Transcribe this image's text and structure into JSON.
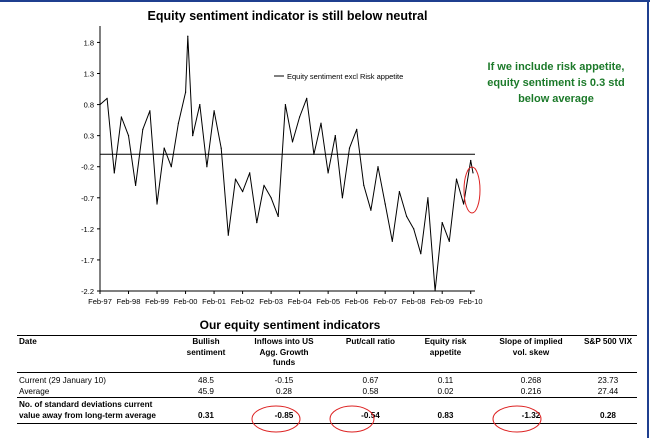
{
  "chart_data": {
    "type": "line",
    "title": "Equity sentiment indicator is still below neutral",
    "legend": {
      "label": "Equity sentiment excl Risk appetite",
      "placement": "top-center"
    },
    "series": [
      {
        "name": "Equity sentiment excl Risk appetite",
        "color": "#000000",
        "x": [
          1997.0,
          1997.25,
          1997.5,
          1997.75,
          1998.0,
          1998.25,
          1998.5,
          1998.75,
          1999.0,
          1999.25,
          1999.5,
          1999.75,
          2000.0,
          2000.08,
          2000.25,
          2000.5,
          2000.75,
          2001.0,
          2001.25,
          2001.5,
          2001.75,
          2002.0,
          2002.25,
          2002.5,
          2002.75,
          2003.0,
          2003.25,
          2003.5,
          2003.75,
          2004.0,
          2004.25,
          2004.5,
          2004.75,
          2005.0,
          2005.25,
          2005.5,
          2005.75,
          2006.0,
          2006.25,
          2006.5,
          2006.75,
          2007.0,
          2007.25,
          2007.5,
          2007.75,
          2008.0,
          2008.25,
          2008.5,
          2008.75,
          2009.0,
          2009.25,
          2009.5,
          2009.75,
          2010.0,
          2010.08
        ],
        "y": [
          0.8,
          0.9,
          -0.3,
          0.6,
          0.3,
          -0.5,
          0.4,
          0.7,
          -0.8,
          0.1,
          -0.2,
          0.5,
          1.0,
          1.9,
          0.3,
          0.8,
          -0.2,
          0.7,
          0.1,
          -1.3,
          -0.4,
          -0.6,
          -0.3,
          -1.1,
          -0.5,
          -0.7,
          -1.0,
          0.8,
          0.2,
          0.6,
          0.9,
          0.0,
          0.5,
          -0.3,
          0.3,
          -0.7,
          0.1,
          0.4,
          -0.5,
          -0.9,
          -0.2,
          -0.8,
          -1.4,
          -0.6,
          -1.0,
          -1.2,
          -1.6,
          -0.7,
          -2.2,
          -1.1,
          -1.4,
          -0.4,
          -0.8,
          -0.1,
          -0.3
        ]
      }
    ],
    "zero_line": 0,
    "ylim": [
      -2.2,
      2.0
    ],
    "yticks": [
      "1.8",
      "1.3",
      "0.8",
      "0.3",
      "-0.2",
      "-0.7",
      "-1.2",
      "-1.7",
      "-2.2"
    ],
    "yticks_values": [
      1.8,
      1.3,
      0.8,
      0.3,
      -0.2,
      -0.7,
      -1.2,
      -1.7,
      -2.2
    ],
    "xticks": [
      "Feb-97",
      "Feb-98",
      "Feb-99",
      "Feb-00",
      "Feb-01",
      "Feb-02",
      "Feb-03",
      "Feb-04",
      "Feb-05",
      "Feb-06",
      "Feb-07",
      "Feb-08",
      "Feb-09",
      "Feb-10"
    ],
    "xlim": [
      1997.0,
      2010.15
    ],
    "grid": false,
    "highlight": {
      "description_color": "#dd2222"
    }
  },
  "callout": {
    "lines": [
      "If we include risk appetite,",
      "equity sentiment is 0.3 std",
      "below average"
    ],
    "color": "#1c7a2a"
  },
  "table": {
    "title": "Our equity sentiment indicators",
    "columns": [
      "Date",
      "Bullish\nsentiment",
      "Inflows into US\nAgg. Growth\nfunds",
      "Put/call ratio",
      "Equity risk\nappetite",
      "Slope of implied\nvol. skew",
      "S&P 500 VIX"
    ],
    "rows": [
      {
        "label": "Current (29 January 10)",
        "values": [
          "48.5",
          "-0.15",
          "0.67",
          "0.11",
          "0.268",
          "23.73"
        ]
      },
      {
        "label": "Average",
        "values": [
          "45.9",
          "0.28",
          "0.58",
          "0.02",
          "0.216",
          "27.44"
        ]
      },
      {
        "label": "No. of standard deviations current value away from long-term average",
        "values": [
          "0.31",
          "-0.85",
          "-0.54",
          "0.83",
          "-1.32",
          "0.28"
        ]
      }
    ],
    "circle_color": "#dd2222"
  },
  "colors": {
    "frame": "#1f3f8f",
    "line": "#000000",
    "circle": "#dd2222"
  }
}
